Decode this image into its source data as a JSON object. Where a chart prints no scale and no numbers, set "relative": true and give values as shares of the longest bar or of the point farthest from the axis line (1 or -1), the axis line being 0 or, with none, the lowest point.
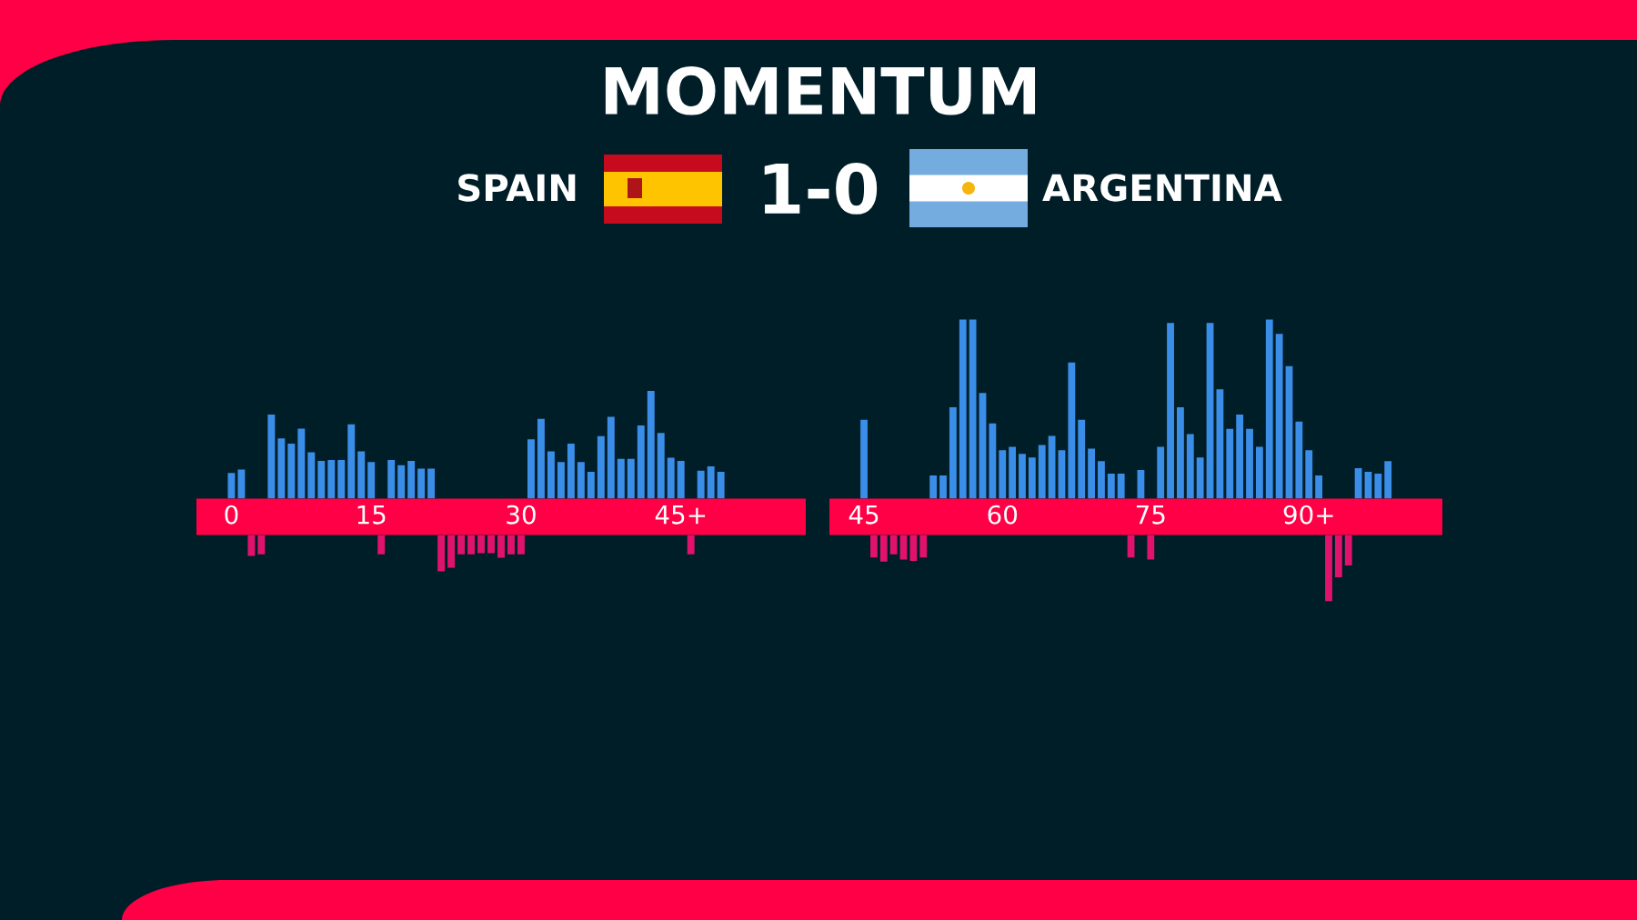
{
  "chart_data": [
    {
      "type": "bar",
      "title": "MOMENTUM",
      "annotations": [
        "SPAIN",
        "1-0",
        "ARGENTINA"
      ],
      "relative": true,
      "color": "#3b8ee8",
      "categories": [
        "0",
        null,
        null,
        null,
        null,
        null,
        null,
        null,
        null,
        null,
        null,
        null,
        null,
        null,
        "15",
        null,
        null,
        null,
        null,
        null,
        null,
        null,
        null,
        null,
        null,
        null,
        null,
        null,
        null,
        "30",
        null,
        null,
        null,
        null,
        null,
        null,
        null,
        null,
        null,
        null,
        null,
        null,
        null,
        null,
        null,
        "45+",
        null,
        null,
        null,
        null,
        null,
        null,
        null,
        null,
        null
      ],
      "values": [
        0.24,
        0.27,
        null,
        null,
        0.78,
        0.56,
        0.51,
        0.65,
        0.43,
        0.35,
        0.36,
        0.36,
        0.69,
        0.44,
        0.34,
        null,
        0.36,
        0.31,
        0.35,
        0.28,
        0.28,
        null,
        null,
        null,
        null,
        null,
        null,
        null,
        null,
        null,
        0.55,
        0.74,
        0.44,
        0.34,
        0.51,
        0.34,
        0.25,
        0.58,
        0.76,
        0.37,
        0.37,
        0.68,
        1.0,
        0.61,
        0.38,
        0.35,
        null,
        0.26,
        0.3,
        0.25,
        null,
        null,
        null,
        null,
        null
      ]
    },
    {
      "type": "bar",
      "relative": true,
      "color": "#e0126b",
      "categories": [
        null,
        null,
        null,
        null,
        null,
        null,
        null,
        null,
        null,
        null,
        null,
        null,
        null,
        null,
        null,
        null,
        null,
        null,
        null,
        null,
        null,
        null,
        null,
        null,
        null,
        null,
        null,
        null,
        null,
        null,
        null,
        null,
        null,
        null,
        null,
        null,
        null,
        null,
        null,
        null,
        null,
        null,
        null,
        null,
        null,
        null,
        null,
        null,
        null,
        null,
        null,
        null,
        null,
        null,
        null
      ],
      "values": [
        null,
        null,
        -0.57,
        -0.53,
        null,
        null,
        null,
        null,
        null,
        null,
        null,
        null,
        null,
        null,
        null,
        -0.53,
        null,
        null,
        null,
        null,
        null,
        -1.0,
        -0.9,
        -0.53,
        -0.53,
        -0.5,
        -0.5,
        -0.62,
        -0.53,
        -0.53,
        null,
        null,
        null,
        null,
        null,
        null,
        null,
        null,
        null,
        null,
        null,
        null,
        null,
        null,
        null,
        null,
        -0.53,
        null,
        null,
        null,
        null,
        null,
        null,
        null,
        null
      ]
    },
    {
      "type": "bar",
      "relative": true,
      "color": "#3b8ee8",
      "categories": [
        "45",
        null,
        null,
        null,
        null,
        null,
        null,
        null,
        null,
        null,
        null,
        null,
        null,
        null,
        "60",
        null,
        null,
        null,
        null,
        null,
        null,
        null,
        null,
        null,
        null,
        null,
        null,
        null,
        null,
        "75",
        null,
        null,
        null,
        null,
        null,
        null,
        null,
        null,
        null,
        null,
        null,
        null,
        null,
        null,
        null,
        "90+",
        null,
        null,
        null,
        null,
        null,
        null,
        null,
        null,
        null,
        null
      ],
      "values": [
        0.44,
        null,
        null,
        null,
        null,
        null,
        null,
        0.13,
        0.13,
        0.51,
        1.0,
        1.0,
        0.59,
        0.42,
        0.27,
        0.29,
        0.25,
        0.23,
        0.3,
        0.35,
        0.27,
        0.76,
        0.44,
        0.28,
        0.21,
        0.14,
        0.14,
        null,
        0.16,
        null,
        0.29,
        0.98,
        0.51,
        0.36,
        0.23,
        0.98,
        0.61,
        0.39,
        0.47,
        0.39,
        0.29,
        1.0,
        0.92,
        0.74,
        0.43,
        0.27,
        0.13,
        null,
        null,
        null,
        0.17,
        0.15,
        0.14,
        0.21,
        null,
        null
      ]
    },
    {
      "type": "bar",
      "relative": true,
      "color": "#e0126b",
      "categories": [
        null,
        null,
        null,
        null,
        null,
        null,
        null,
        null,
        null,
        null,
        null,
        null,
        null,
        null,
        null,
        null,
        null,
        null,
        null,
        null,
        null,
        null,
        null,
        null,
        null,
        null,
        null,
        null,
        null,
        null,
        null,
        null,
        null,
        null,
        null,
        null,
        null,
        null,
        null,
        null,
        null,
        null,
        null,
        null,
        null,
        null,
        null,
        null,
        null,
        null,
        null,
        null,
        null,
        null,
        null,
        null
      ],
      "values": [
        null,
        -0.34,
        -0.4,
        -0.29,
        -0.37,
        -0.39,
        -0.34,
        null,
        null,
        null,
        null,
        null,
        null,
        null,
        null,
        null,
        null,
        null,
        null,
        null,
        null,
        null,
        null,
        null,
        null,
        null,
        null,
        -0.34,
        null,
        -0.37,
        null,
        null,
        null,
        null,
        null,
        null,
        null,
        null,
        null,
        null,
        null,
        null,
        null,
        null,
        null,
        null,
        null,
        -1.0,
        -0.64,
        -0.46,
        null,
        null,
        null,
        null,
        null,
        null
      ]
    }
  ]
}
